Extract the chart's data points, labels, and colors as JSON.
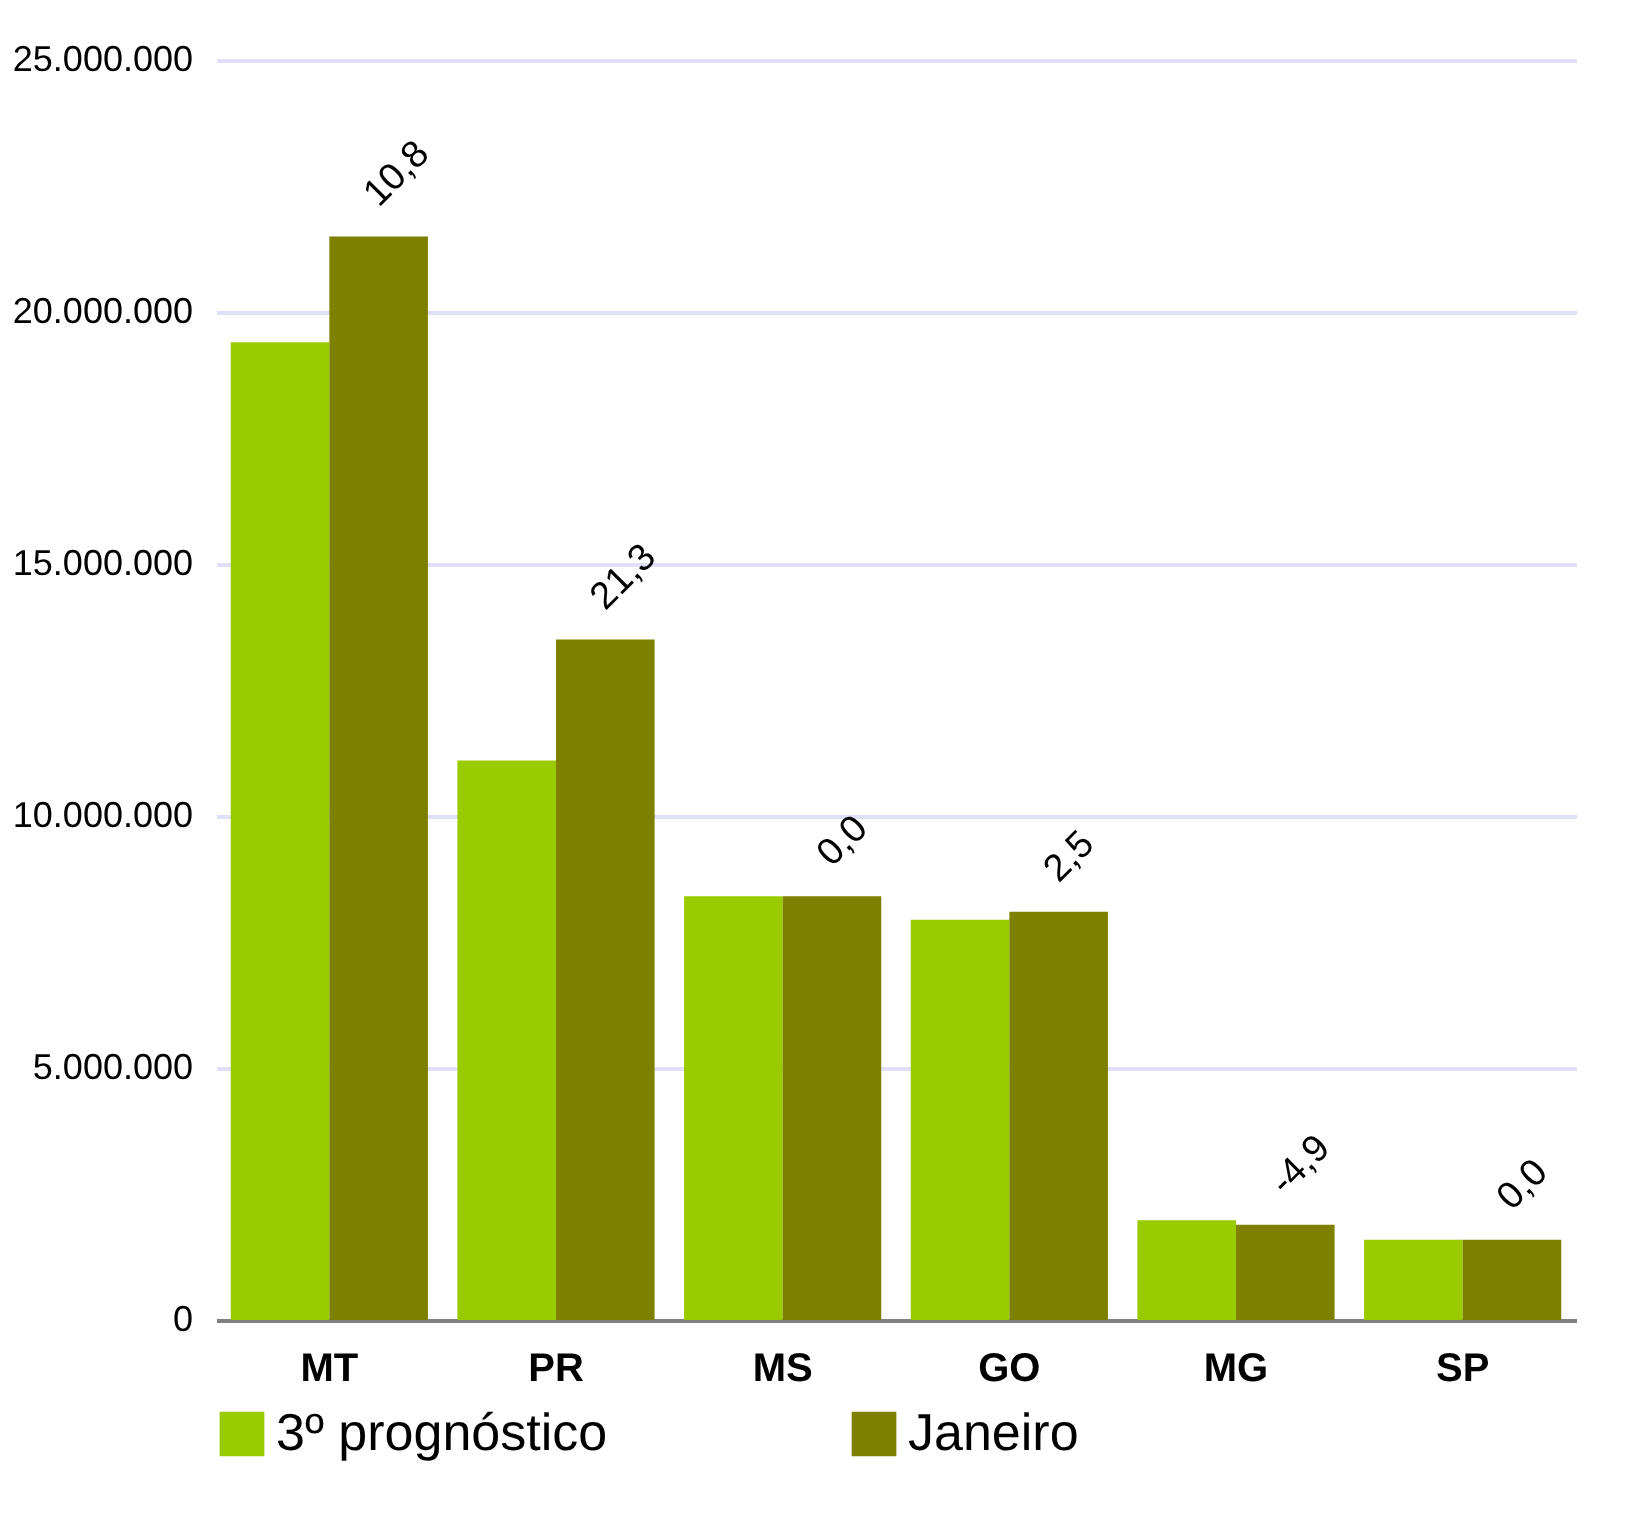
{
  "chart_data": {
    "type": "bar",
    "categories": [
      "MT",
      "PR",
      "MS",
      "GO",
      "MG",
      "SP"
    ],
    "series": [
      {
        "name": "3º prognóstico",
        "color": "#99cc00",
        "values": [
          19400000,
          11100000,
          8410000,
          7940000,
          1980000,
          1590000
        ]
      },
      {
        "name": "Janeiro",
        "color": "#808000",
        "values": [
          21500000,
          13500000,
          8410000,
          8100000,
          1890000,
          1590000
        ]
      }
    ],
    "annotations": [
      {
        "text": "10,8",
        "x": "MT",
        "y": 21500000
      },
      {
        "text": "21,3",
        "x": "PR",
        "y": 13500000
      },
      {
        "text": "0,0",
        "x": "MS",
        "y": 8410000
      },
      {
        "text": "2,5",
        "x": "GO",
        "y": 8100000
      },
      {
        "text": "-4,9",
        "x": "MG",
        "y": 1890000
      },
      {
        "text": "0,0",
        "x": "SP",
        "y": 1590000
      }
    ],
    "ylim": [
      0,
      25000000
    ],
    "yticks": [
      {
        "value": 0,
        "label": "0"
      },
      {
        "value": 5000000,
        "label": "5.000.000"
      },
      {
        "value": 10000000,
        "label": "10.000.000"
      },
      {
        "value": 15000000,
        "label": "15.000.000"
      },
      {
        "value": 20000000,
        "label": "20.000.000"
      },
      {
        "value": 25000000,
        "label": "25.000.000"
      }
    ],
    "grid": "y",
    "legend": "bottom"
  }
}
